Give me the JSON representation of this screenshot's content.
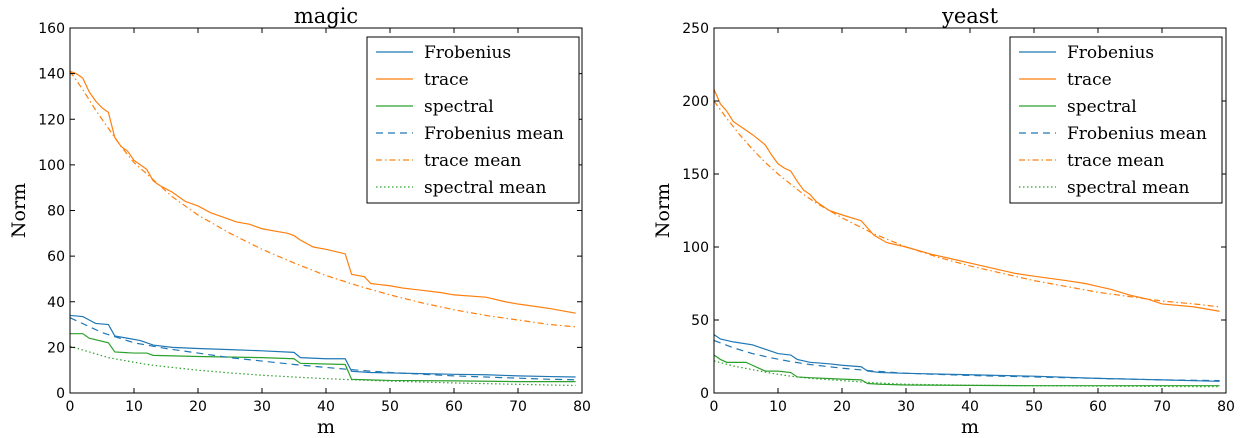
{
  "colors": {
    "frobenius": "#1f77b4",
    "trace": "#ff7f0e",
    "spectral": "#2ca02c"
  },
  "chart_data": [
    {
      "type": "line",
      "title": "magic",
      "xlabel": "m",
      "ylabel": "Norm",
      "xlim": [
        0,
        80
      ],
      "ylim": [
        0,
        160
      ],
      "xticks": [
        "0",
        "10",
        "20",
        "30",
        "40",
        "50",
        "60",
        "70",
        "80"
      ],
      "yticks": [
        "0",
        "20",
        "40",
        "60",
        "80",
        "100",
        "120",
        "140",
        "160"
      ],
      "legend_position": "top-right",
      "grid": false,
      "series": [
        {
          "name": "Frobenius",
          "color": "frobenius",
          "style": "solid",
          "x": [
            0,
            2,
            3,
            4,
            6,
            7,
            9,
            11,
            12,
            13,
            16,
            20,
            25,
            30,
            35,
            36,
            40,
            43,
            44,
            47,
            50,
            55,
            60,
            65,
            70,
            75,
            79
          ],
          "y": [
            34,
            33.5,
            32,
            30.5,
            30,
            25,
            24,
            23,
            22,
            21,
            20,
            19.5,
            19,
            18.5,
            17.8,
            15.5,
            15,
            15,
            9.5,
            9,
            8.8,
            8.5,
            8.2,
            8,
            7.5,
            7.2,
            7
          ]
        },
        {
          "name": "trace",
          "color": "trace",
          "style": "solid",
          "x": [
            0,
            1,
            2,
            3,
            4,
            5,
            6,
            7,
            8,
            9,
            10,
            11,
            12,
            13,
            14,
            16,
            18,
            20,
            22,
            24,
            26,
            28,
            30,
            32,
            34,
            35,
            36,
            38,
            40,
            43,
            44,
            46,
            47,
            50,
            52,
            55,
            58,
            60,
            65,
            68,
            70,
            75,
            79
          ],
          "y": [
            141,
            140,
            138,
            132,
            128,
            125,
            123,
            112,
            108,
            106,
            102,
            100,
            98,
            93,
            91,
            88,
            84,
            82,
            79,
            77,
            75,
            74,
            72,
            71,
            70,
            69,
            67,
            64,
            63,
            61,
            52,
            51,
            48,
            47,
            46,
            45,
            44,
            43,
            42,
            40,
            39,
            37,
            35
          ]
        },
        {
          "name": "spectral",
          "color": "spectral",
          "style": "solid",
          "x": [
            0,
            2,
            3,
            6,
            7,
            10,
            12,
            13,
            20,
            30,
            35,
            36,
            43,
            44,
            50,
            60,
            70,
            79
          ],
          "y": [
            26,
            26,
            24,
            22,
            18,
            17.5,
            17.5,
            16.5,
            16,
            15.5,
            15,
            13,
            12.5,
            6,
            5.5,
            5.3,
            5,
            5
          ]
        },
        {
          "name": "Frobenius mean",
          "color": "frobenius",
          "style": "dashed",
          "x": [
            0,
            5,
            10,
            15,
            20,
            25,
            30,
            35,
            40,
            45,
            50,
            55,
            60,
            65,
            70,
            75,
            79
          ],
          "y": [
            33,
            26.5,
            22,
            19.5,
            17.5,
            15.5,
            14,
            12.5,
            11.2,
            10,
            9,
            8.2,
            7.5,
            7,
            6.5,
            6,
            5.8
          ]
        },
        {
          "name": "trace mean",
          "color": "trace",
          "style": "dashdot",
          "x": [
            0,
            2,
            4,
            6,
            8,
            10,
            12,
            14,
            16,
            18,
            20,
            25,
            30,
            35,
            40,
            45,
            50,
            55,
            60,
            65,
            70,
            75,
            79
          ],
          "y": [
            141,
            133,
            124,
            116,
            108,
            101,
            96,
            91,
            86,
            82,
            78,
            70,
            63,
            57,
            51.5,
            47,
            43,
            39.5,
            36.5,
            34,
            32,
            30,
            29
          ]
        },
        {
          "name": "spectral mean",
          "color": "spectral",
          "style": "dotted",
          "x": [
            0,
            3,
            6,
            9,
            12,
            15,
            20,
            25,
            30,
            35,
            40,
            45,
            50,
            55,
            60,
            65,
            70,
            75,
            79
          ],
          "y": [
            20.5,
            18,
            15.5,
            14,
            12.5,
            11.5,
            10,
            8.8,
            7.8,
            7,
            6.3,
            5.7,
            5.2,
            4.8,
            4.4,
            4.1,
            3.8,
            3.5,
            3.3
          ]
        }
      ]
    },
    {
      "type": "line",
      "title": "yeast",
      "xlabel": "m",
      "ylabel": "Norm",
      "xlim": [
        0,
        80
      ],
      "ylim": [
        0,
        250
      ],
      "xticks": [
        "0",
        "10",
        "20",
        "30",
        "40",
        "50",
        "60",
        "70",
        "80"
      ],
      "yticks": [
        "0",
        "50",
        "100",
        "150",
        "200",
        "250"
      ],
      "legend_position": "top-right",
      "grid": false,
      "series": [
        {
          "name": "Frobenius",
          "color": "frobenius",
          "style": "solid",
          "x": [
            0,
            1,
            3,
            6,
            8,
            10,
            12,
            13,
            15,
            18,
            20,
            23,
            24,
            26,
            30,
            40,
            50,
            60,
            70,
            79
          ],
          "y": [
            40,
            37,
            35,
            33,
            30,
            27,
            26,
            23,
            21,
            20,
            19,
            18,
            15,
            14,
            13.5,
            12.5,
            11.5,
            10,
            9,
            8
          ]
        },
        {
          "name": "trace",
          "color": "trace",
          "style": "solid",
          "x": [
            0,
            1,
            2,
            3,
            4,
            6,
            8,
            9,
            10,
            11,
            12,
            13,
            14,
            15,
            16,
            18,
            20,
            23,
            25,
            27,
            30,
            34,
            38,
            40,
            44,
            47,
            50,
            55,
            58,
            60,
            62,
            65,
            67,
            68,
            70,
            75,
            79
          ],
          "y": [
            208,
            198,
            193,
            186,
            183,
            177,
            170,
            163,
            157,
            154,
            152,
            145,
            139,
            136,
            131,
            125,
            122,
            118,
            108,
            103,
            100,
            95,
            91,
            89,
            85,
            82,
            80,
            77,
            75,
            73,
            71,
            67,
            65,
            64,
            61,
            59,
            56
          ]
        },
        {
          "name": "spectral",
          "color": "spectral",
          "style": "solid",
          "x": [
            0,
            1,
            2,
            5,
            6,
            8,
            10,
            12,
            13,
            15,
            20,
            23,
            24,
            26,
            30,
            40,
            50,
            60,
            70,
            79
          ],
          "y": [
            26,
            23,
            21,
            21,
            19,
            15,
            15,
            14,
            11,
            10.5,
            9.5,
            9,
            6.5,
            6,
            5.5,
            5.2,
            5,
            5,
            5,
            5
          ]
        },
        {
          "name": "Frobenius mean",
          "color": "frobenius",
          "style": "dashed",
          "x": [
            0,
            3,
            6,
            9,
            12,
            15,
            20,
            25,
            30,
            40,
            50,
            60,
            70,
            79
          ],
          "y": [
            36,
            31,
            27,
            24,
            21.5,
            19.5,
            17,
            15,
            13.5,
            12,
            11,
            10,
            9,
            8.5
          ]
        },
        {
          "name": "trace mean",
          "color": "trace",
          "style": "dashdot",
          "x": [
            0,
            2,
            4,
            6,
            8,
            10,
            12,
            14,
            16,
            18,
            20,
            25,
            30,
            35,
            40,
            45,
            50,
            55,
            60,
            65,
            70,
            75,
            79
          ],
          "y": [
            200,
            188,
            177,
            167,
            158,
            150,
            143,
            136,
            130,
            125,
            120,
            109,
            100,
            93,
            87,
            82,
            77,
            73,
            69,
            66,
            63,
            61,
            59
          ]
        },
        {
          "name": "spectral mean",
          "color": "spectral",
          "style": "dotted",
          "x": [
            0,
            3,
            6,
            9,
            12,
            15,
            20,
            25,
            30,
            40,
            50,
            60,
            70,
            79
          ],
          "y": [
            22,
            18.5,
            16,
            13.5,
            11.5,
            10,
            8.5,
            7,
            6,
            5.3,
            5,
            4.7,
            4.5,
            4.3
          ]
        }
      ]
    }
  ]
}
